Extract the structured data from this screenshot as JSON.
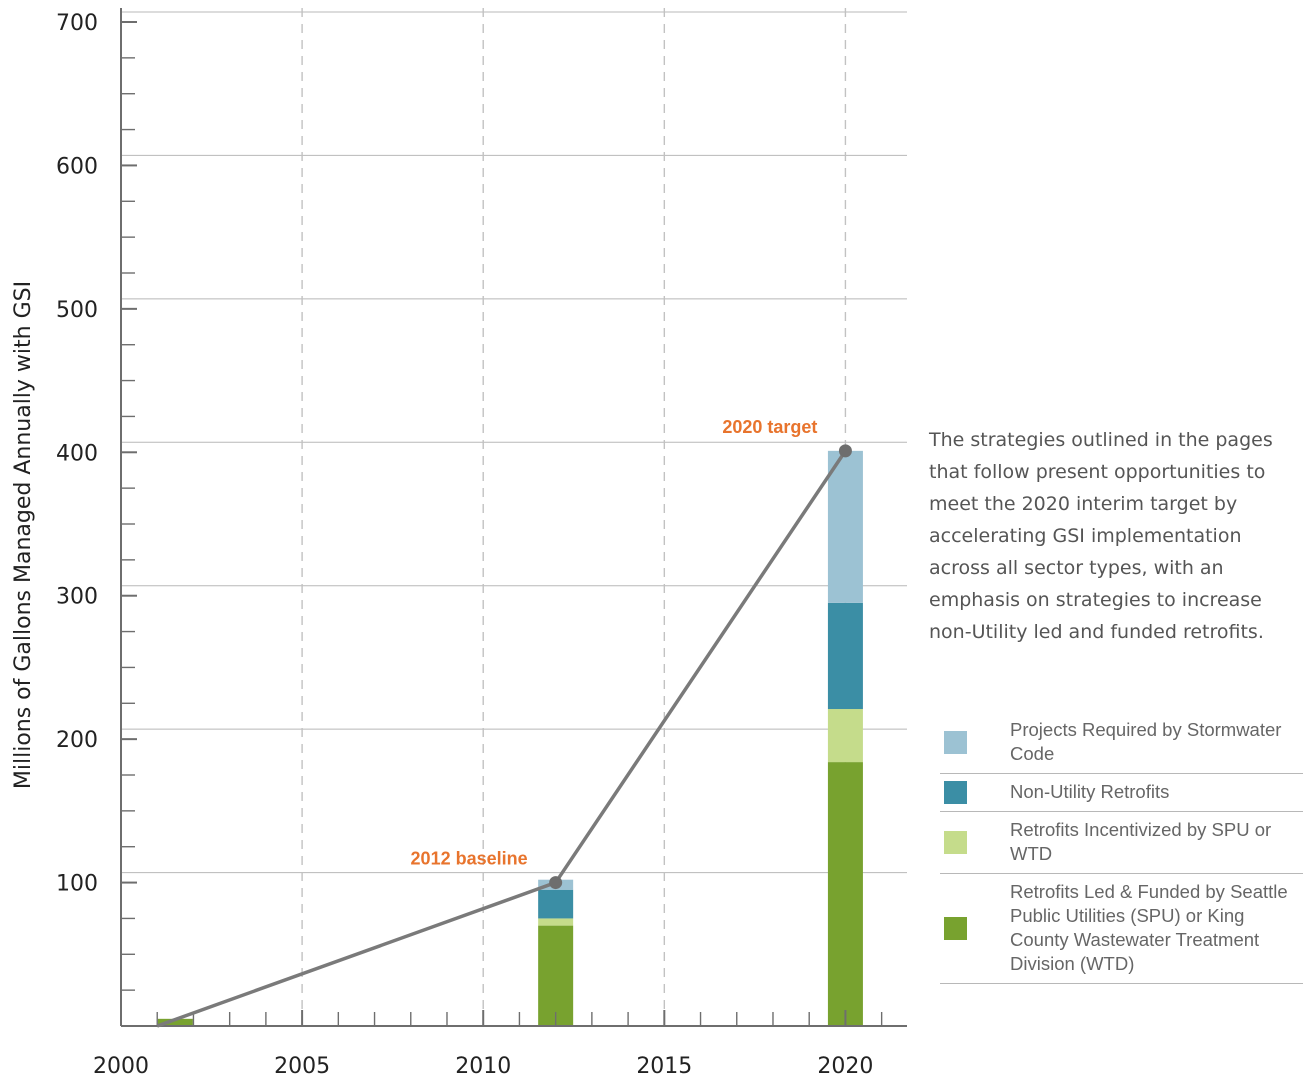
{
  "chart_data": {
    "type": "bar",
    "ylabel": "Millions of Gallons Managed Annually with GSI",
    "xlabel": "",
    "xlim": [
      2000,
      2021.7
    ],
    "ylim": [
      0,
      700
    ],
    "x_ticks": [
      2000,
      2005,
      2010,
      2015,
      2020
    ],
    "y_ticks": [
      100,
      200,
      300,
      400,
      500,
      600,
      700
    ],
    "grid": true,
    "bar_x": [
      2001.5,
      2012,
      2020
    ],
    "series": [
      {
        "name": "Retrofits Led & Funded by Seattle Public Utilities (SPU) or King County Wastewater Treatment Division (WTD)",
        "color": "#78a22f",
        "values": [
          5,
          70,
          184
        ]
      },
      {
        "name": "Retrofits Incentivized by SPU or WTD",
        "color": "#c5dc8b",
        "values": [
          0,
          5,
          37
        ]
      },
      {
        "name": "Non-Utility Retrofits",
        "color": "#3b8ea5",
        "values": [
          0,
          20,
          74
        ]
      },
      {
        "name": "Projects Required by Stormwater Code",
        "color": "#9cc2d3",
        "values": [
          0,
          7,
          106
        ]
      }
    ],
    "trend_line": {
      "color": "#7a7a7a",
      "points": [
        [
          2001,
          0
        ],
        [
          2012,
          100
        ],
        [
          2020,
          401
        ]
      ]
    },
    "annotations": [
      {
        "text": "2012 baseline",
        "x": 2012,
        "y": 100,
        "color": "#e8742d"
      },
      {
        "text": "2020 target",
        "x": 2020,
        "y": 401,
        "color": "#e8742d"
      }
    ],
    "legend_position": "right"
  },
  "description": "The strategies outlined in the pages that follow present opportunities to meet the 2020 interim target by accelerating GSI implementation across all sector types, with an emphasis on strategies to increase non-Utility led and funded retrofits.",
  "legend": [
    {
      "label": "Projects Required by Stormwater Code",
      "color": "#9cc2d3"
    },
    {
      "label": "Non-Utility Retrofits",
      "color": "#3b8ea5"
    },
    {
      "label": "Retrofits Incentivized by SPU or WTD",
      "color": "#c5dc8b"
    },
    {
      "label": "Retrofits Led & Funded by Seattle Public Utilities (SPU) or King County Wastewater Treatment Division (WTD)",
      "color": "#78a22f"
    }
  ]
}
